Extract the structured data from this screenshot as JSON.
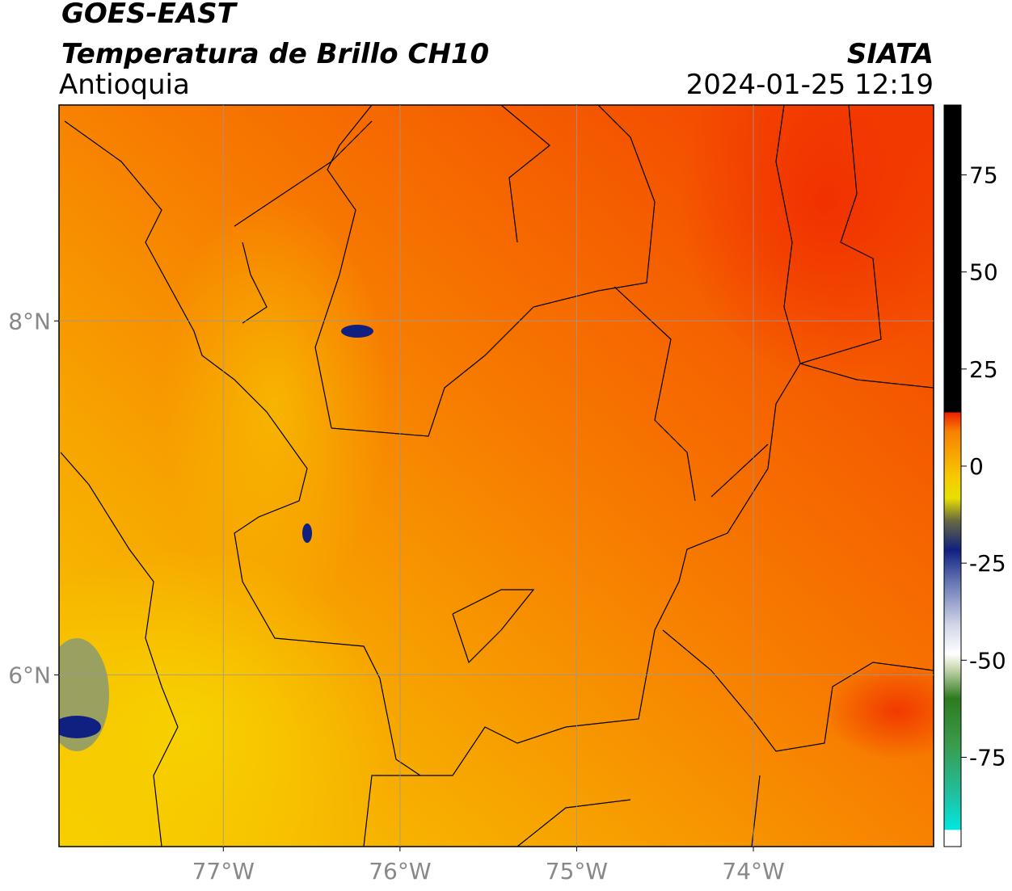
{
  "header": {
    "title": "GOES-EAST",
    "subtitle": "Temperatura de Brillo CH10",
    "region": "Antioquia",
    "source": "SIATA",
    "datetime": "2024-01-25 12:19"
  },
  "map": {
    "lonlim": [
      -77.93,
      -72.98
    ],
    "latlim": [
      5.03,
      9.22
    ],
    "lonticks": [
      {
        "value": -77,
        "label": "77°W"
      },
      {
        "value": -76,
        "label": "76°W"
      },
      {
        "value": -75,
        "label": "75°W"
      },
      {
        "value": -74,
        "label": "74°W"
      }
    ],
    "latticks": [
      {
        "value": 8,
        "label": "8°N"
      },
      {
        "value": 6,
        "label": "6°N"
      }
    ],
    "grid": true
  },
  "colorbar": {
    "lim": [
      -98,
      93
    ],
    "ticks": [
      75,
      50,
      25,
      0,
      -25,
      -50,
      -75
    ]
  }
}
